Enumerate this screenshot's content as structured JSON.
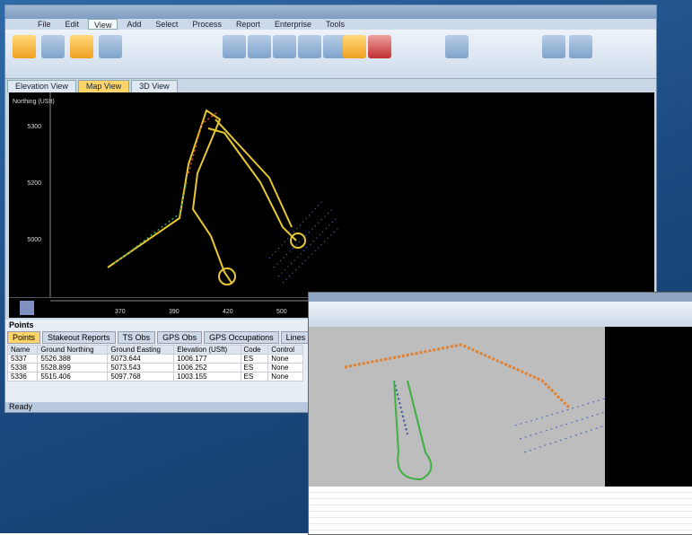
{
  "menu": [
    "File",
    "Edit",
    "View",
    "Add",
    "Select",
    "Process",
    "Report",
    "Enterprise",
    "Tools"
  ],
  "view_tabs": [
    "Elevation View",
    "Map View",
    "3D View"
  ],
  "map": {
    "y_axis_title": "Northing (USft)",
    "y_labels": [
      "5300",
      "5200",
      "5000"
    ],
    "x_labels": [
      "370",
      "390",
      "420",
      "500"
    ]
  },
  "panel": {
    "title": "Points",
    "tabs": [
      "Points",
      "Stakeout Reports",
      "TS Obs",
      "GPS Obs",
      "GPS Occupations",
      "Lines"
    ],
    "table": {
      "columns": [
        "Name",
        "Ground Northing",
        "Ground Easting",
        "Elevation (USft)",
        "Code",
        "Control"
      ],
      "rows": [
        [
          "5337",
          "5526.388",
          "5073.644",
          "1006.177",
          "ES",
          "None"
        ],
        [
          "5338",
          "5528.899",
          "5073.543",
          "1006.252",
          "ES",
          "None"
        ],
        [
          "5336",
          "5515.406",
          "5097.768",
          "1003.155",
          "ES",
          "None"
        ]
      ]
    }
  },
  "status": "Ready"
}
